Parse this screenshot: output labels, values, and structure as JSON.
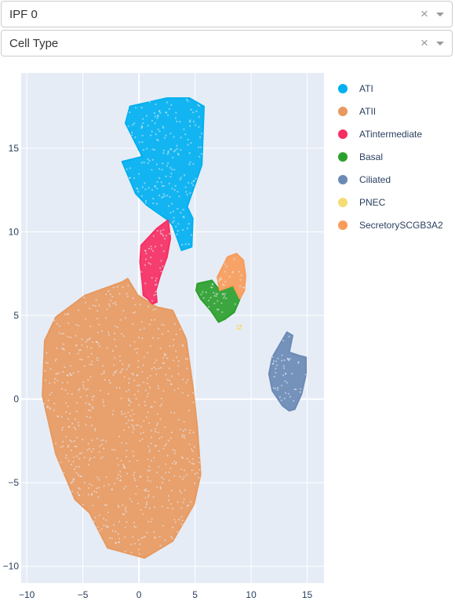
{
  "selectors": [
    {
      "value": "IPF 0",
      "clear_icon": "×"
    },
    {
      "value": "Cell Type",
      "clear_icon": "×"
    }
  ],
  "chart_data": {
    "type": "scatter",
    "xlim": [
      -10.5,
      16.5
    ],
    "ylim": [
      -11,
      19.5
    ],
    "xticks": [
      -10,
      -5,
      0,
      5,
      10,
      15
    ],
    "yticks": [
      -10,
      -5,
      0,
      5,
      10,
      15
    ],
    "xtick_labels": [
      "−10",
      "−5",
      "0",
      "5",
      "10",
      "15"
    ],
    "ytick_labels": [
      "−10",
      "−5",
      "0",
      "5",
      "10",
      "15"
    ],
    "grid": true,
    "legend_position": "right",
    "series": [
      {
        "name": "ATI",
        "color": "#00b0f0",
        "outline": [
          [
            0.3,
            14.5
          ],
          [
            -1.2,
            16.5
          ],
          [
            -0.8,
            17.5
          ],
          [
            2.5,
            18
          ],
          [
            4.5,
            18
          ],
          [
            5.8,
            17.5
          ],
          [
            5.6,
            14
          ],
          [
            4.3,
            11.5
          ],
          [
            4.8,
            10.8
          ],
          [
            4.7,
            9.1
          ],
          [
            3.8,
            8.9
          ],
          [
            3.0,
            10.4
          ],
          [
            2.6,
            10.7
          ],
          [
            0.7,
            11.6
          ],
          [
            -0.3,
            12.3
          ],
          [
            -1.5,
            14.2
          ]
        ]
      },
      {
        "name": "ATII",
        "color": "#e8995f",
        "outline": [
          [
            -1.5,
            7.0
          ],
          [
            -4.8,
            6.2
          ],
          [
            -7.4,
            4.9
          ],
          [
            -8.4,
            3.5
          ],
          [
            -8.6,
            0.2
          ],
          [
            -7.4,
            -3.3
          ],
          [
            -5.7,
            -6.0
          ],
          [
            -4.4,
            -6.8
          ],
          [
            -2.8,
            -8.9
          ],
          [
            0.5,
            -9.5
          ],
          [
            3.0,
            -8.5
          ],
          [
            4.9,
            -6.3
          ],
          [
            5.5,
            -4.5
          ],
          [
            5.2,
            -1.7
          ],
          [
            4.8,
            0.8
          ],
          [
            4.2,
            3.6
          ],
          [
            3.0,
            5.3
          ],
          [
            1.6,
            5.5
          ],
          [
            -0.1,
            6.2
          ],
          [
            -1.0,
            7.2
          ]
        ]
      },
      {
        "name": "ATintermediate",
        "color": "#f72e63",
        "outline": [
          [
            2.6,
            10.7
          ],
          [
            1.6,
            10.2
          ],
          [
            0.2,
            9.2
          ],
          [
            0.1,
            8.2
          ],
          [
            0.3,
            7.0
          ],
          [
            0.4,
            6.2
          ],
          [
            0.8,
            6.0
          ],
          [
            1.2,
            5.7
          ],
          [
            1.6,
            5.8
          ],
          [
            1.5,
            6.5
          ],
          [
            1.9,
            7.4
          ],
          [
            2.5,
            8.5
          ],
          [
            2.8,
            9.6
          ]
        ]
      },
      {
        "name": "Basal",
        "color": "#2ca02c",
        "outline": [
          [
            5.2,
            6.9
          ],
          [
            6.5,
            7.1
          ],
          [
            7.2,
            6.5
          ],
          [
            8.4,
            6.8
          ],
          [
            9.0,
            6.0
          ],
          [
            8.5,
            5.2
          ],
          [
            7.7,
            4.8
          ],
          [
            7.1,
            4.6
          ],
          [
            6.4,
            5.3
          ],
          [
            5.5,
            6.0
          ],
          [
            5.1,
            6.5
          ]
        ]
      },
      {
        "name": "Ciliated",
        "color": "#6b8ab5",
        "outline": [
          [
            12.5,
            3.2
          ],
          [
            13.2,
            4.0
          ],
          [
            13.7,
            3.8
          ],
          [
            13.4,
            2.8
          ],
          [
            14.3,
            2.6
          ],
          [
            14.9,
            2.5
          ],
          [
            14.9,
            1.5
          ],
          [
            14.5,
            0.3
          ],
          [
            13.9,
            -0.6
          ],
          [
            13.4,
            -0.7
          ],
          [
            12.8,
            -0.4
          ],
          [
            11.9,
            0.5
          ],
          [
            11.6,
            1.5
          ],
          [
            11.9,
            2.5
          ]
        ]
      },
      {
        "name": "PNEC",
        "color": "#f4dd73",
        "outline": [
          [
            8.8,
            4.4
          ],
          [
            9.1,
            4.4
          ],
          [
            9.1,
            4.2
          ],
          [
            8.8,
            4.2
          ]
        ]
      },
      {
        "name": "SecretorySCGB3A2",
        "color": "#f89c5a",
        "outline": [
          [
            7.0,
            7.3
          ],
          [
            7.9,
            8.5
          ],
          [
            8.7,
            8.7
          ],
          [
            9.3,
            8.3
          ],
          [
            9.5,
            7.4
          ],
          [
            9.4,
            6.5
          ],
          [
            9.0,
            6.0
          ],
          [
            8.4,
            6.8
          ],
          [
            7.2,
            6.5
          ]
        ]
      }
    ]
  }
}
